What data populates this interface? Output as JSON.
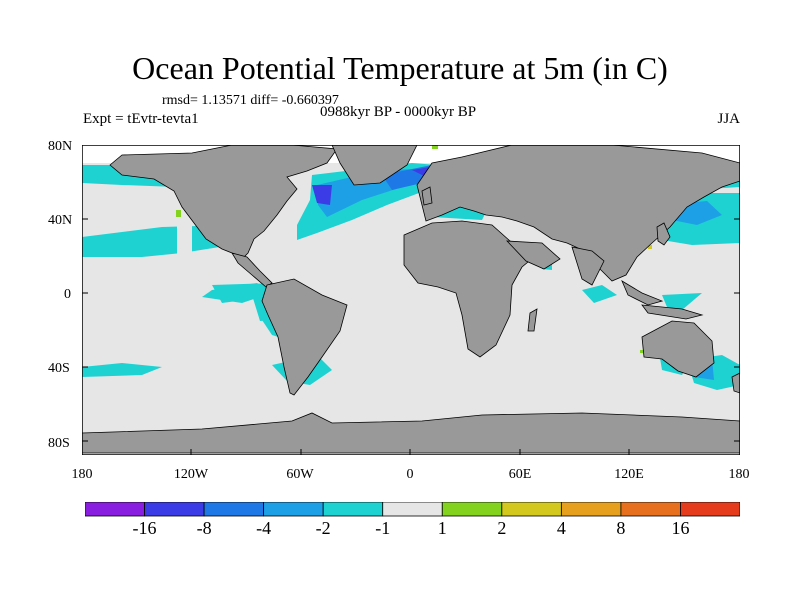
{
  "title": "Ocean Potential Temperature at 5m (in C)",
  "stats": "rmsd= 1.13571 diff= -0.660397",
  "left_label": "Expt = tEvtr-tevta1",
  "center_label": "0988kyr BP - 0000kyr BP",
  "right_label": "JJA",
  "y_ticks": [
    "80N",
    "40N",
    "0",
    "40S",
    "80S"
  ],
  "x_ticks": [
    "180",
    "120W",
    "60W",
    "0",
    "60E",
    "120E",
    "180"
  ],
  "colorbar": {
    "labels": [
      "-16",
      "-8",
      "-4",
      "-2",
      "-1",
      "1",
      "2",
      "4",
      "8",
      "16"
    ],
    "colors": [
      "#8a1ee0",
      "#3c3ce6",
      "#1e78e6",
      "#1ea0e6",
      "#1ed2d2",
      "#e6e6e6",
      "#82d21e",
      "#d2c81e",
      "#e6a01e",
      "#e6701e",
      "#e63c1e"
    ]
  },
  "colors": {
    "land": "#999999",
    "ocean": "#e6e6e6",
    "cool1": "#1ed2d2",
    "cool2": "#1ea0e6",
    "cool3": "#1e78e6",
    "cool4": "#3c3ce6",
    "warm1": "#82d21e",
    "warm2": "#d2c81e"
  }
}
